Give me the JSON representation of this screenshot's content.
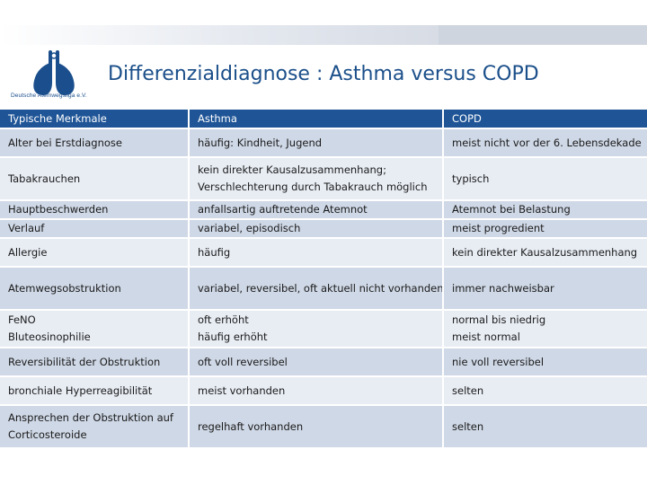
{
  "slide": {
    "title": "Differenzialdiagnose : Asthma versus COPD",
    "logo_text": "Deutsche Atemwegsliga e.V.",
    "colors": {
      "header": "#1f5597",
      "row_dark": "#cfd8e6",
      "row_light": "#e8edf4",
      "title": "#1b4f8a"
    }
  },
  "table": {
    "headers": [
      "Typische Merkmale",
      "Asthma",
      "COPD"
    ],
    "rows": [
      {
        "feature": [
          "Alter bei Erstdiagnose"
        ],
        "asthma": [
          "häufig: Kindheit, Jugend"
        ],
        "copd": [
          "meist nicht vor der 6. Lebensdekade"
        ]
      },
      {
        "feature": [
          "Tabakrauchen"
        ],
        "asthma": [
          "kein direkter Kausalzusammenhang;",
          "Verschlechterung durch Tabakrauch möglich"
        ],
        "copd": [
          "typisch"
        ]
      },
      {
        "feature": [
          "Hauptbeschwerden"
        ],
        "asthma": [
          "anfallsartig auftretende Atemnot"
        ],
        "copd": [
          "Atemnot bei Belastung"
        ]
      },
      {
        "feature": [
          "Verlauf"
        ],
        "asthma": [
          "variabel, episodisch"
        ],
        "copd": [
          "meist progredient"
        ]
      },
      {
        "feature": [
          "Allergie"
        ],
        "asthma": [
          "häufig"
        ],
        "copd": [
          "kein direkter Kausalzusammenhang"
        ]
      },
      {
        "feature": [
          "Atemwegsobstruktion"
        ],
        "asthma": [
          "variabel, reversibel, oft aktuell nicht vorhanden"
        ],
        "copd": [
          "immer nachweisbar"
        ]
      },
      {
        "feature": [
          "FeNO",
          "Bluteosinophilie"
        ],
        "asthma": [
          "oft erhöht",
          "häufig erhöht"
        ],
        "copd": [
          "normal bis niedrig",
          "meist normal"
        ]
      },
      {
        "feature": [
          "Reversibilität der Obstruktion"
        ],
        "asthma": [
          "oft voll reversibel"
        ],
        "copd": [
          "nie voll reversibel"
        ]
      },
      {
        "feature": [
          "bronchiale Hyperreagibilität"
        ],
        "asthma": [
          "meist vorhanden"
        ],
        "copd": [
          "selten"
        ]
      },
      {
        "feature": [
          "Ansprechen der Obstruktion auf",
          "Corticosteroide"
        ],
        "asthma": [
          "regelhaft vorhanden"
        ],
        "copd": [
          "selten"
        ]
      }
    ]
  }
}
